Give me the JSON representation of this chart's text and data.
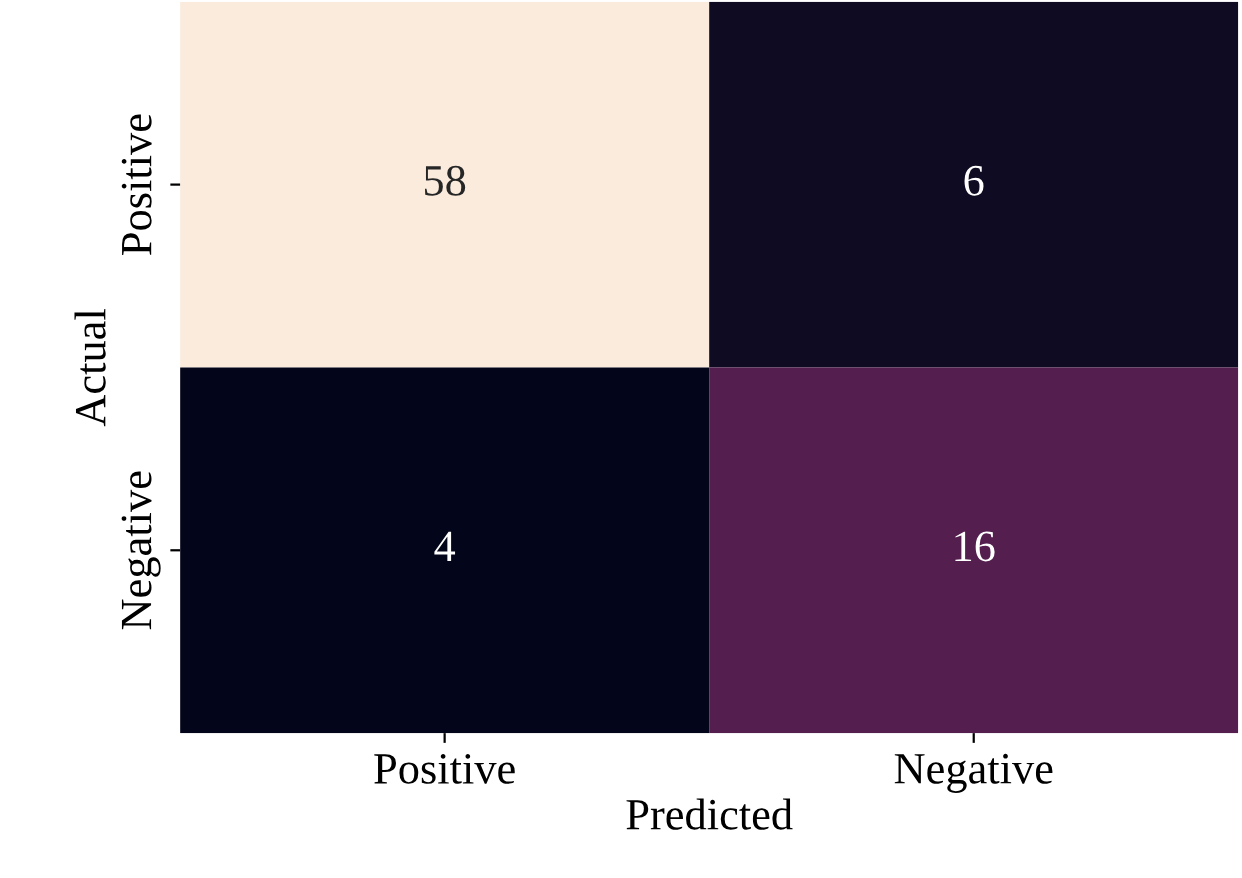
{
  "chart_data": {
    "type": "heatmap",
    "xlabel": "Predicted",
    "ylabel": "Actual",
    "categories": [
      "Positive",
      "Negative"
    ],
    "y_categories": [
      "Positive",
      "Negative"
    ],
    "cells": [
      [
        58,
        6
      ],
      [
        4,
        16
      ]
    ],
    "data_labels": true
  }
}
